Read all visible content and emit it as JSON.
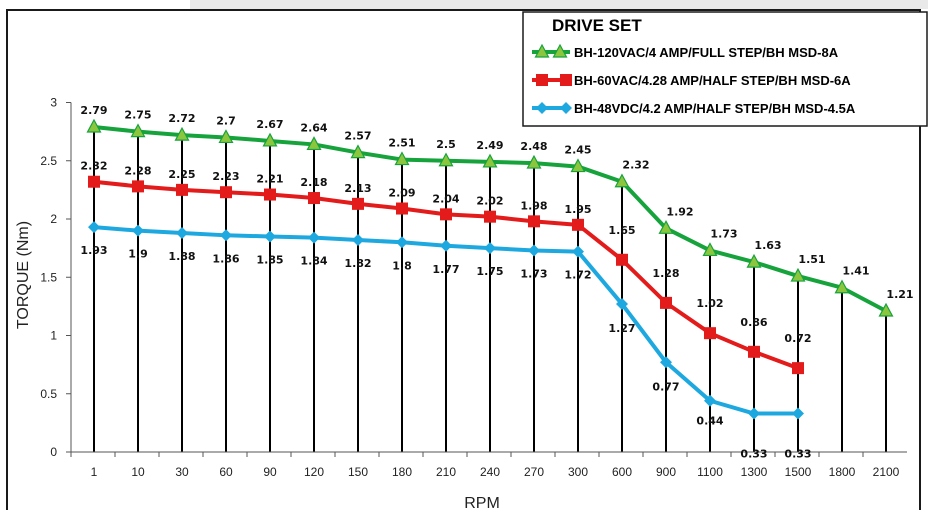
{
  "chart_data": {
    "type": "line",
    "title": "",
    "xlabel": "RPM",
    "ylabel": "TORQUE (Nm)",
    "categories": [
      "1",
      "10",
      "30",
      "60",
      "90",
      "120",
      "150",
      "180",
      "210",
      "240",
      "270",
      "300",
      "600",
      "900",
      "1100",
      "1300",
      "1500",
      "1800",
      "2100"
    ],
    "ylim": [
      0,
      3
    ],
    "yticks": [
      "0",
      "0.5",
      "1",
      "1.5",
      "2",
      "2.5",
      "3"
    ],
    "grid": "vertical drop lines at each category",
    "legend": {
      "title": "DRIVE SET",
      "placement": "top-right"
    },
    "series": [
      {
        "name": "BH-120VAC/4 AMP/FULL STEP/BH MSD-8A",
        "color": "#17a33c",
        "marker": "triangle",
        "values": [
          2.79,
          2.75,
          2.72,
          2.7,
          2.67,
          2.64,
          2.57,
          2.51,
          2.5,
          2.49,
          2.48,
          2.45,
          2.32,
          1.92,
          1.73,
          1.63,
          1.51,
          1.41,
          1.21
        ],
        "labels": [
          "2.79",
          "2.75",
          "2.72",
          "2.7",
          "2.67",
          "2.64",
          "2.57",
          "2.51",
          "2.5",
          "2.49",
          "2.48",
          "2.45",
          "2.32",
          "1.92",
          "1.73",
          "1.63",
          "1.51",
          "1.41",
          "1.21"
        ]
      },
      {
        "name": "BH-60VAC/4.28 AMP/HALF STEP/BH MSD-6A",
        "color": "#e31b1b",
        "marker": "square",
        "values": [
          2.32,
          2.28,
          2.25,
          2.23,
          2.21,
          2.18,
          2.13,
          2.09,
          2.04,
          2.02,
          1.98,
          1.95,
          1.65,
          1.28,
          1.02,
          0.86,
          0.72,
          null,
          null
        ],
        "labels": [
          "2.32",
          "2.28",
          "2.25",
          "2.23",
          "2.21",
          "2.18",
          "2.13",
          "2.09",
          "2.04",
          "2.02",
          "1.98",
          "1.95",
          "1.65",
          "1.28",
          "1.02",
          "0.86",
          "0.72",
          "",
          ""
        ]
      },
      {
        "name": "BH-48VDC/4.2 AMP/HALF STEP/BH MSD-4.5A",
        "color": "#1ea8e0",
        "marker": "diamond",
        "values": [
          1.93,
          1.9,
          1.88,
          1.86,
          1.85,
          1.84,
          1.82,
          1.8,
          1.77,
          1.75,
          1.73,
          1.72,
          1.27,
          0.77,
          0.44,
          0.33,
          0.33,
          null,
          null
        ],
        "labels": [
          "1.93",
          "1.9",
          "1.88",
          "1.86",
          "1.85",
          "1.84",
          "1.82",
          "1.8",
          "1.77",
          "1.75",
          "1.73",
          "1.72",
          "1.27",
          "0.77",
          "0.44",
          "0.33",
          "0.33",
          "",
          ""
        ]
      }
    ]
  }
}
